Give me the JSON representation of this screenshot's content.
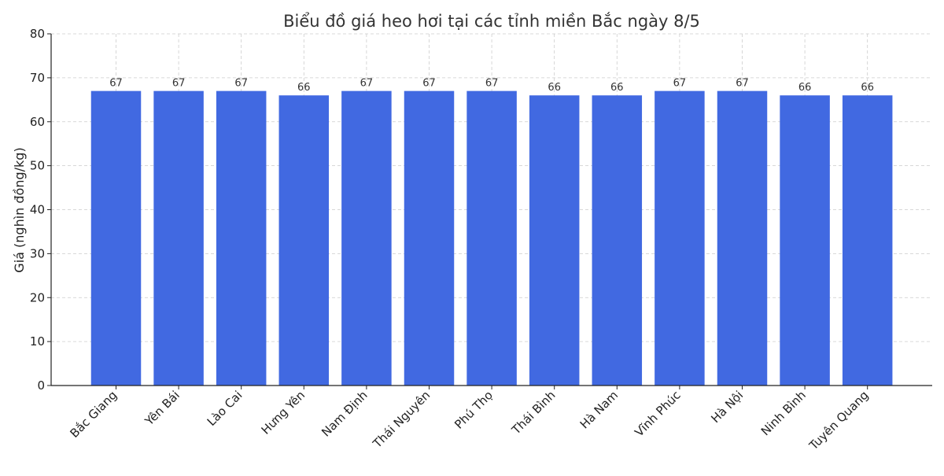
{
  "chart_data": {
    "type": "bar",
    "title": "Biểu đồ giá heo hơi tại các tỉnh miền Bắc ngày 8/5",
    "xlabel": "",
    "ylabel": "Giá (nghìn đồng/kg)",
    "categories": [
      "Bắc Giang",
      "Yên Bái",
      "Lào Cai",
      "Hưng Yên",
      "Nam Định",
      "Thái Nguyên",
      "Phú Thọ",
      "Thái Bình",
      "Hà Nam",
      "Vĩnh Phúc",
      "Hà Nội",
      "Ninh Bình",
      "Tuyên Quang"
    ],
    "values": [
      67,
      67,
      67,
      66,
      67,
      67,
      67,
      66,
      66,
      67,
      67,
      66,
      66
    ],
    "ylim": [
      0,
      80
    ],
    "yticks": [
      0,
      10,
      20,
      30,
      40,
      50,
      60,
      70,
      80
    ],
    "grid": true,
    "bar_color": "#4169e1"
  }
}
